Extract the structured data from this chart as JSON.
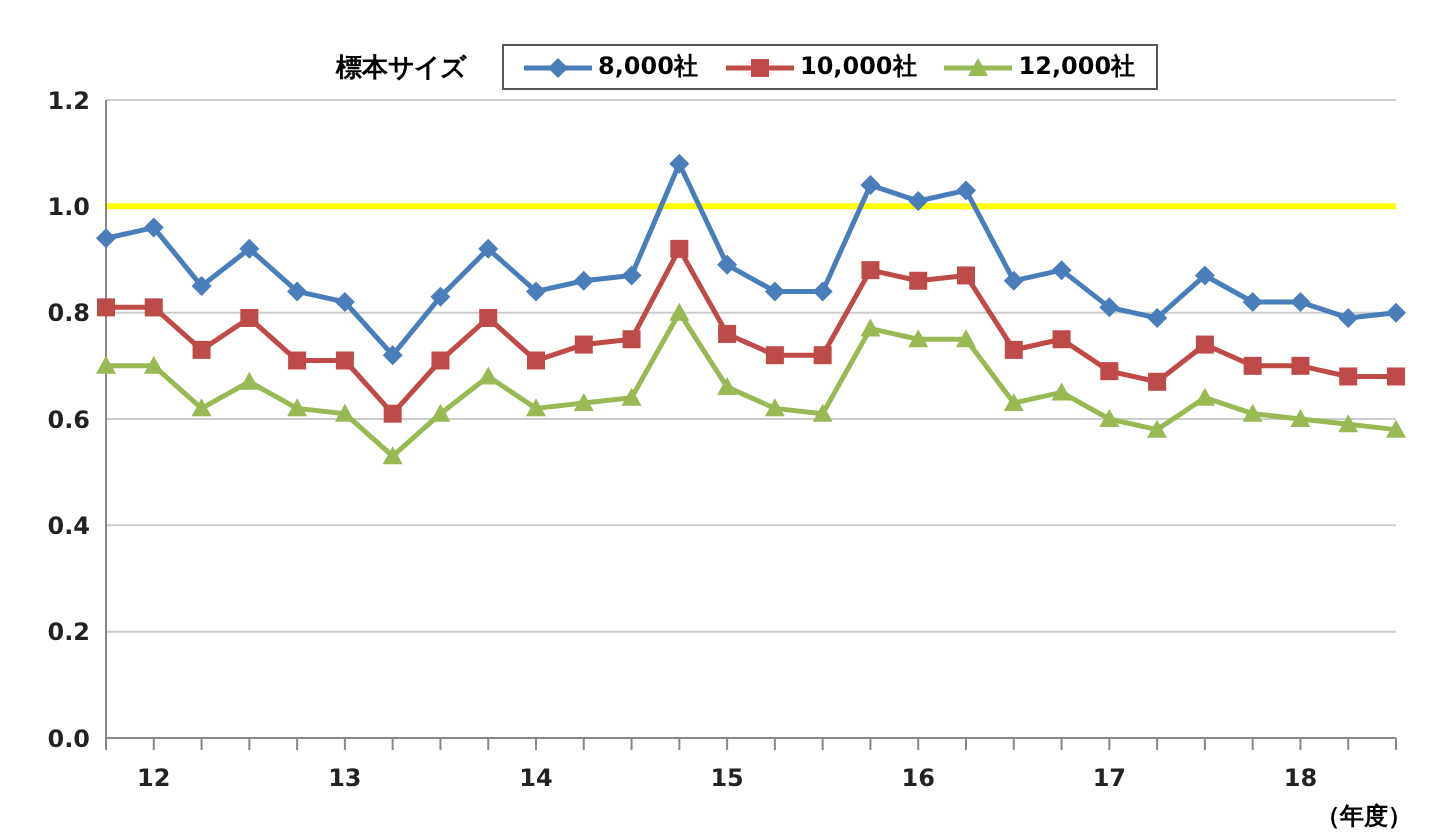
{
  "chart_data": {
    "type": "line",
    "legend_title": "標本サイズ",
    "legend": "top",
    "categories": [
      null,
      "12",
      null,
      null,
      null,
      "13",
      null,
      null,
      null,
      "14",
      null,
      null,
      null,
      "15",
      null,
      null,
      null,
      "16",
      null,
      null,
      null,
      "17",
      null,
      null,
      null,
      "18",
      null,
      null
    ],
    "series": [
      {
        "name": "8,000社",
        "color": "#4a7ebb",
        "marker": "diamond",
        "values": [
          0.94,
          0.96,
          0.85,
          0.92,
          0.84,
          0.82,
          0.72,
          0.83,
          0.92,
          0.84,
          0.86,
          0.87,
          1.08,
          0.89,
          0.84,
          0.84,
          1.04,
          1.01,
          1.03,
          0.86,
          0.88,
          0.81,
          0.79,
          0.87,
          0.82,
          0.82,
          0.79,
          0.8
        ]
      },
      {
        "name": "10,000社",
        "color": "#be4b48",
        "marker": "square",
        "values": [
          0.81,
          0.81,
          0.73,
          0.79,
          0.71,
          0.71,
          0.61,
          0.71,
          0.79,
          0.71,
          0.74,
          0.75,
          0.92,
          0.76,
          0.72,
          0.72,
          0.88,
          0.86,
          0.87,
          0.73,
          0.75,
          0.69,
          0.67,
          0.74,
          0.7,
          0.7,
          0.68,
          0.68
        ]
      },
      {
        "name": "12,000社",
        "color": "#98b954",
        "marker": "triangle",
        "values": [
          0.7,
          0.7,
          0.62,
          0.67,
          0.62,
          0.61,
          0.53,
          0.61,
          0.68,
          0.62,
          0.63,
          0.64,
          0.8,
          0.66,
          0.62,
          0.61,
          0.77,
          0.75,
          0.75,
          0.63,
          0.65,
          0.6,
          0.58,
          0.64,
          0.61,
          0.6,
          0.59,
          0.58
        ]
      }
    ],
    "ylim": [
      0,
      1.2
    ],
    "yticks": [
      {
        "value": 0,
        "label": "0.0"
      },
      {
        "value": 0.2,
        "label": "0.2"
      },
      {
        "value": 0.4,
        "label": "0.4"
      },
      {
        "value": 0.6,
        "label": "0.6"
      },
      {
        "value": 0.8,
        "label": "0.8"
      },
      {
        "value": 1.0,
        "label": "1.0"
      },
      {
        "value": 1.2,
        "label": "1.2"
      }
    ],
    "grid": "y",
    "ref_lines": [
      {
        "axis": "y",
        "value": 1.0,
        "color": "#ffff00"
      }
    ],
    "annotations": [
      "（年度）"
    ]
  }
}
